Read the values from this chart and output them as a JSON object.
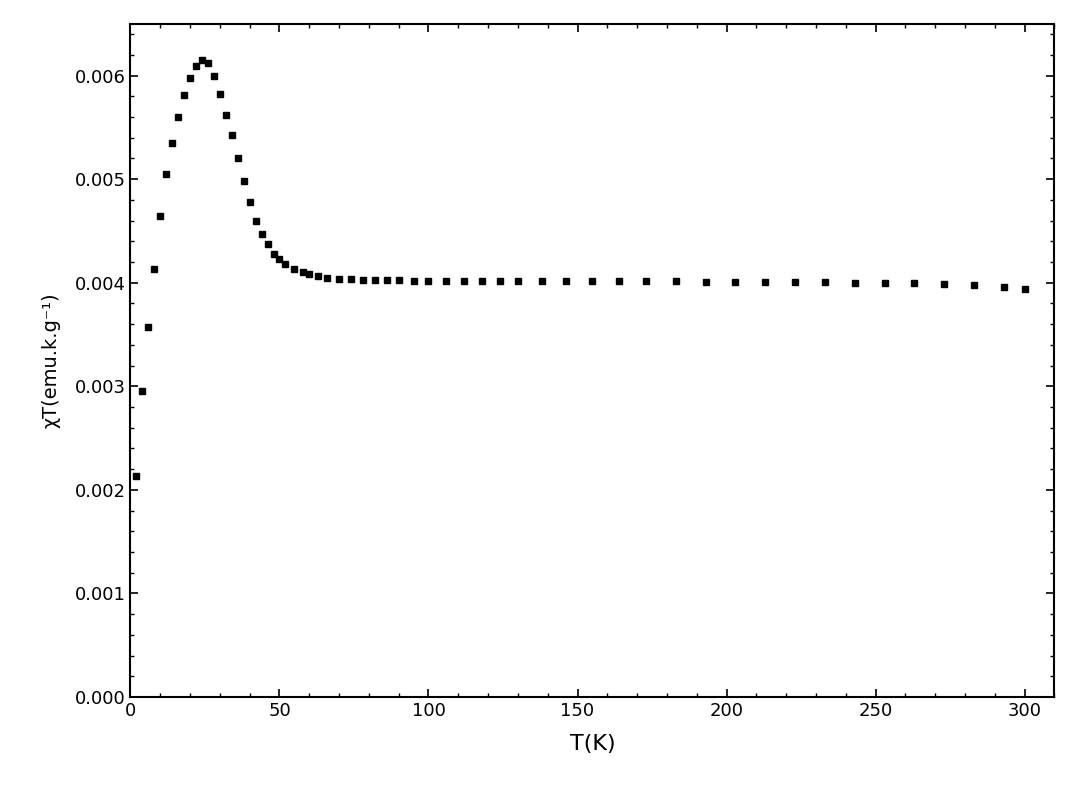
{
  "title": "",
  "xlabel": "T(K)",
  "ylabel": "χT(emu.k.g⁻¹)",
  "xlim": [
    0,
    310
  ],
  "ylim": [
    0.0,
    0.0065
  ],
  "xticks": [
    0,
    50,
    100,
    150,
    200,
    250,
    300
  ],
  "yticks": [
    0.0,
    0.001,
    0.002,
    0.003,
    0.004,
    0.005,
    0.006
  ],
  "marker_color": "#000000",
  "marker": "s",
  "marker_size": 5,
  "data_T": [
    2,
    4,
    6,
    8,
    10,
    12,
    14,
    16,
    18,
    20,
    22,
    24,
    26,
    28,
    30,
    32,
    34,
    36,
    38,
    40,
    42,
    44,
    46,
    48,
    50,
    52,
    55,
    58,
    60,
    63,
    66,
    70,
    74,
    78,
    82,
    86,
    90,
    95,
    100,
    106,
    112,
    118,
    124,
    130,
    138,
    146,
    155,
    164,
    173,
    183,
    193,
    203,
    213,
    223,
    233,
    243,
    253,
    263,
    273,
    283,
    293,
    300
  ],
  "data_chiT": [
    0.00213,
    0.00295,
    0.00357,
    0.00413,
    0.00464,
    0.00505,
    0.00535,
    0.0056,
    0.00581,
    0.00598,
    0.00609,
    0.00615,
    0.00612,
    0.006,
    0.00582,
    0.00562,
    0.00543,
    0.0052,
    0.00498,
    0.00478,
    0.0046,
    0.00447,
    0.00437,
    0.00428,
    0.00423,
    0.00418,
    0.00413,
    0.0041,
    0.00408,
    0.00406,
    0.00405,
    0.00404,
    0.00404,
    0.00403,
    0.00403,
    0.00403,
    0.00403,
    0.00402,
    0.00402,
    0.00402,
    0.00402,
    0.00402,
    0.00402,
    0.00402,
    0.00402,
    0.00402,
    0.00402,
    0.00402,
    0.00402,
    0.00402,
    0.00401,
    0.00401,
    0.00401,
    0.00401,
    0.00401,
    0.004,
    0.004,
    0.004,
    0.00399,
    0.00398,
    0.00396,
    0.00394
  ]
}
